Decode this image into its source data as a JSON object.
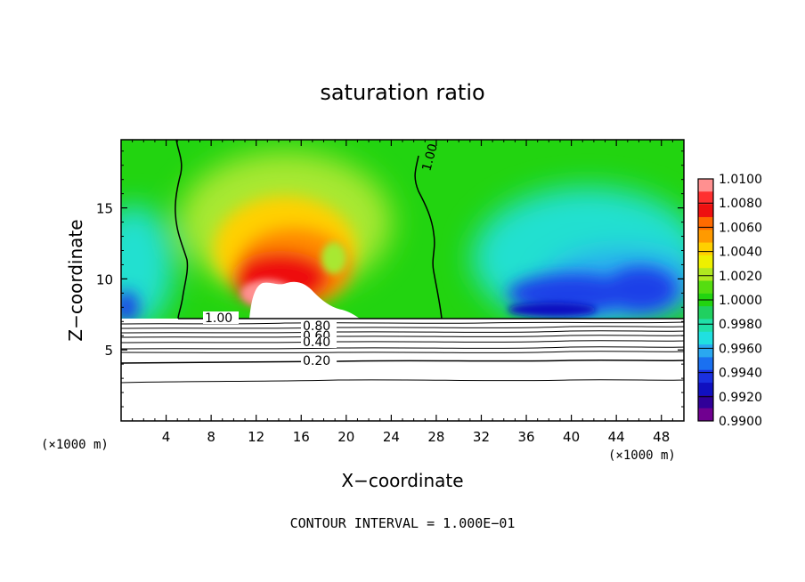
{
  "chart_data": {
    "type": "heatmap",
    "title": "saturation ratio",
    "xlabel": "X−coordinate",
    "ylabel": "Z−coordinate",
    "x_unit": "(×1000 m)",
    "y_unit": "(×1000 m)",
    "xlim": [
      0,
      50
    ],
    "ylim": [
      0,
      19.8
    ],
    "x_ticks": [
      4,
      8,
      12,
      16,
      20,
      24,
      28,
      32,
      36,
      40,
      44,
      48
    ],
    "y_ticks": [
      5,
      10,
      15
    ],
    "colorbar": {
      "min": 0.99,
      "max": 1.01,
      "labels": [
        "1.0100",
        "1.0080",
        "1.0060",
        "1.0040",
        "1.0020",
        "1.0000",
        "0.9980",
        "0.9960",
        "0.9940",
        "0.9920",
        "0.9900"
      ],
      "colors": [
        "#ff9090",
        "#ff3030",
        "#ee1010",
        "#ff6a00",
        "#ff9a00",
        "#ffd000",
        "#eef000",
        "#b0e820",
        "#55dd10",
        "#22d410",
        "#20d060",
        "#20e0a8",
        "#20e0e0",
        "#2aa8f0",
        "#1a70f0",
        "#1a30e0",
        "#1010c0",
        "#300098",
        "#700090"
      ]
    },
    "contour_interval_note": "CONTOUR INTERVAL = 1.000E−01",
    "contour_labels": [
      "1.00",
      "1.00",
      "0.80",
      "0.60",
      "0.40",
      "0.20"
    ],
    "contours": [
      {
        "level": 1.0,
        "label": "1.00"
      },
      {
        "level": 0.8,
        "label": "0.80"
      },
      {
        "level": 0.6,
        "label": "0.60"
      },
      {
        "level": 0.4,
        "label": "0.40"
      },
      {
        "level": 0.2,
        "label": "0.20"
      }
    ],
    "grid": false,
    "legend": "right"
  }
}
